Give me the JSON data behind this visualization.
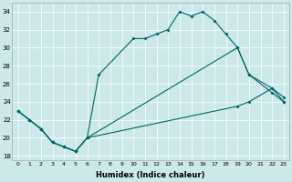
{
  "xlabel": "Humidex (Indice chaleur)",
  "background_color": "#cce8e8",
  "grid_color": "#ffffff",
  "line_color": "#006666",
  "xlim": [
    -0.5,
    23.5
  ],
  "ylim": [
    17.5,
    35
  ],
  "xticks": [
    0,
    1,
    2,
    3,
    4,
    5,
    6,
    7,
    8,
    9,
    10,
    11,
    12,
    13,
    14,
    15,
    16,
    17,
    18,
    19,
    20,
    21,
    22,
    23
  ],
  "yticks": [
    18,
    20,
    22,
    24,
    26,
    28,
    30,
    32,
    34
  ],
  "line1_x": [
    0,
    1,
    2,
    3,
    4,
    5,
    6,
    7,
    10,
    11,
    12,
    13,
    14,
    15,
    16,
    17,
    18,
    19,
    20,
    22,
    23
  ],
  "line1_y": [
    23,
    22,
    21,
    19.5,
    19,
    18.5,
    20,
    27,
    31,
    31,
    31.5,
    32,
    34,
    33.5,
    34,
    33,
    31.5,
    30,
    27,
    25,
    24
  ],
  "line2_x": [
    0,
    1,
    2,
    3,
    4,
    5,
    6,
    19,
    20,
    22,
    23
  ],
  "line2_y": [
    23,
    22,
    21,
    19.5,
    19,
    18.5,
    20,
    30,
    27,
    25.5,
    24
  ],
  "line3_x": [
    0,
    1,
    2,
    3,
    4,
    5,
    6,
    19,
    20,
    22,
    23
  ],
  "line3_y": [
    23,
    22,
    21,
    19.5,
    19,
    18.5,
    20,
    23.5,
    24,
    25.5,
    24.5
  ]
}
